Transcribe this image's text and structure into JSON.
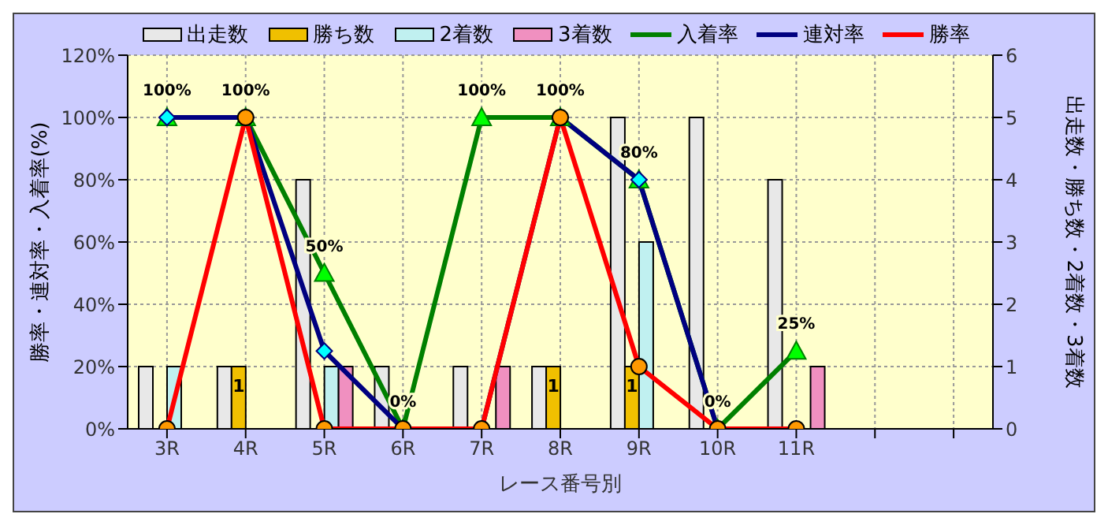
{
  "chart_data": {
    "type": "bar",
    "xlabel": "レース番号別",
    "ylabel": "勝率・連対率・入着率(%)",
    "y2label": "出走数・勝ち数・2着数・3着数",
    "categories": [
      "3R",
      "4R",
      "5R",
      "6R",
      "7R",
      "8R",
      "9R",
      "10R",
      "11R",
      null,
      null
    ],
    "series": [
      {
        "name": "出走数",
        "axis": "y2",
        "color": "#e8e8e8",
        "values": [
          1,
          1,
          4,
          1,
          1,
          1,
          5,
          5,
          4,
          null,
          null
        ]
      },
      {
        "name": "勝ち数",
        "axis": "y2",
        "color": "#f0c000",
        "values": [
          0,
          1,
          0,
          0,
          0,
          1,
          1,
          0,
          0,
          null,
          null
        ],
        "value_labels": [
          null,
          "1",
          null,
          null,
          null,
          "1",
          "1",
          null,
          null,
          null,
          null
        ]
      },
      {
        "name": "2着数",
        "axis": "y2",
        "color": "#c0f0f0",
        "values": [
          1,
          0,
          1,
          0,
          0,
          0,
          3,
          0,
          0,
          null,
          null
        ]
      },
      {
        "name": "3着数",
        "axis": "y2",
        "color": "#f090c0",
        "values": [
          0,
          0,
          1,
          0,
          1,
          0,
          0,
          0,
          1,
          null,
          null
        ]
      },
      {
        "name": "入着率",
        "type": "line",
        "axis": "y",
        "color": "#008000",
        "marker": "triangle",
        "values": [
          100,
          100,
          50,
          0,
          100,
          100,
          80,
          0,
          25,
          null,
          null
        ],
        "value_labels": [
          "100%",
          "100%",
          "50%",
          "0%",
          "100%",
          "100%",
          "80%",
          "0%",
          "25%",
          null,
          null
        ]
      },
      {
        "name": "連対率",
        "type": "line",
        "axis": "y",
        "color": "#000080",
        "marker": "diamond",
        "values": [
          100,
          100,
          25,
          0,
          0,
          100,
          80,
          0,
          0,
          null,
          null
        ]
      },
      {
        "name": "勝率",
        "type": "line",
        "axis": "y",
        "color": "#ff0000",
        "marker": "circle",
        "values": [
          0,
          100,
          0,
          0,
          0,
          100,
          20,
          0,
          0,
          null,
          null
        ]
      }
    ],
    "ylim": [
      0,
      120
    ],
    "yticks": [
      {
        "value": 0,
        "label": "0%"
      },
      {
        "value": 20,
        "label": "20%"
      },
      {
        "value": 40,
        "label": "40%"
      },
      {
        "value": 60,
        "label": "60%"
      },
      {
        "value": 80,
        "label": "80%"
      },
      {
        "value": 100,
        "label": "100%"
      },
      {
        "value": 120,
        "label": "120%"
      }
    ],
    "y2lim": [
      0,
      6
    ],
    "y2ticks": [
      0,
      1,
      2,
      3,
      4,
      5,
      6
    ],
    "grid": true,
    "legend": "top"
  }
}
